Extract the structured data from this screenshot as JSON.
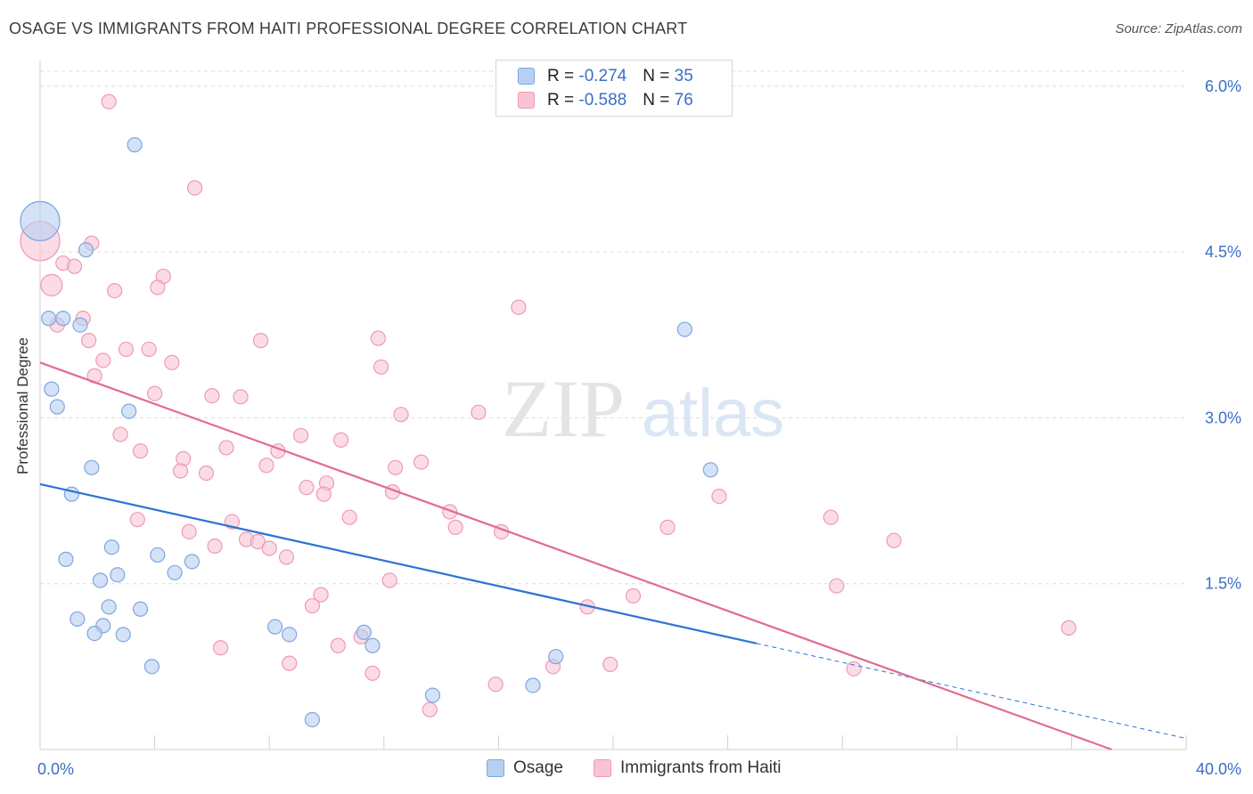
{
  "title": "OSAGE VS IMMIGRANTS FROM HAITI PROFESSIONAL DEGREE CORRELATION CHART",
  "source": "Source: ZipAtlas.com",
  "watermark": {
    "zip": "ZIP",
    "atlas": "atlas"
  },
  "legend": [
    {
      "r_label": "R = ",
      "r_value": "-0.274",
      "n_label": "N = ",
      "n_value": "35"
    },
    {
      "r_label": "R = ",
      "r_value": "-0.588",
      "n_label": "N = ",
      "n_value": "76"
    }
  ],
  "colors": {
    "osage_fill": "#b7cff1",
    "osage_stroke": "#7fa6df",
    "osage_line": "#2e72d2",
    "haiti_fill": "#f8c4d3",
    "haiti_stroke": "#ee9ab4",
    "haiti_line": "#e06b93",
    "tick_label": "#3b6fc4",
    "grid": "#dcdcdc"
  },
  "chart_data": {
    "type": "scatter",
    "title": "OSAGE VS IMMIGRANTS FROM HAITI PROFESSIONAL DEGREE CORRELATION CHART",
    "xlabel": "",
    "ylabel": "Professional Degree",
    "xlim": [
      0,
      40
    ],
    "ylim": [
      0,
      6.2
    ],
    "x_tick_labels": [
      "0.0%",
      "40.0%"
    ],
    "y_ticks": [
      1.5,
      3.0,
      4.5,
      6.0
    ],
    "y_tick_labels": [
      "1.5%",
      "3.0%",
      "4.5%",
      "6.0%"
    ],
    "grid": "horizontal dashed",
    "legend_position": "top-center",
    "series": [
      {
        "name": "Osage",
        "r": -0.274,
        "n": 35,
        "trend": {
          "x0": 0,
          "y0": 2.4,
          "x1": 25,
          "y1": 0.96,
          "dash_to_x": 40,
          "dash_to_y": 0.1
        },
        "points": [
          [
            0.0,
            4.78,
            22
          ],
          [
            3.3,
            5.47,
            8
          ],
          [
            1.6,
            4.52,
            8
          ],
          [
            0.3,
            3.9,
            8
          ],
          [
            0.8,
            3.9,
            8
          ],
          [
            1.4,
            3.84,
            8
          ],
          [
            0.4,
            3.26,
            8
          ],
          [
            0.6,
            3.1,
            8
          ],
          [
            3.1,
            3.06,
            8
          ],
          [
            1.8,
            2.55,
            8
          ],
          [
            1.1,
            2.31,
            8
          ],
          [
            2.5,
            1.83,
            8
          ],
          [
            0.9,
            1.72,
            8
          ],
          [
            4.1,
            1.76,
            8
          ],
          [
            5.3,
            1.7,
            8
          ],
          [
            4.7,
            1.6,
            8
          ],
          [
            2.7,
            1.58,
            8
          ],
          [
            2.1,
            1.53,
            8
          ],
          [
            2.4,
            1.29,
            8
          ],
          [
            3.5,
            1.27,
            8
          ],
          [
            1.3,
            1.18,
            8
          ],
          [
            2.2,
            1.12,
            8
          ],
          [
            1.9,
            1.05,
            8
          ],
          [
            2.9,
            1.04,
            8
          ],
          [
            8.2,
            1.11,
            8
          ],
          [
            8.7,
            1.04,
            8
          ],
          [
            11.3,
            1.06,
            8
          ],
          [
            11.6,
            0.94,
            8
          ],
          [
            3.9,
            0.75,
            8
          ],
          [
            18.0,
            0.84,
            8
          ],
          [
            13.7,
            0.49,
            8
          ],
          [
            17.2,
            0.58,
            8
          ],
          [
            9.5,
            0.27,
            8
          ],
          [
            22.5,
            3.8,
            8
          ],
          [
            23.4,
            2.53,
            8
          ]
        ]
      },
      {
        "name": "Immigrants from Haiti",
        "r": -0.588,
        "n": 76,
        "trend": {
          "x0": 0,
          "y0": 3.5,
          "x1": 37.4,
          "y1": 0.0
        },
        "points": [
          [
            0.0,
            4.6,
            22
          ],
          [
            0.4,
            4.2,
            12
          ],
          [
            2.4,
            5.86,
            8
          ],
          [
            5.4,
            5.08,
            8
          ],
          [
            1.8,
            4.58,
            8
          ],
          [
            0.8,
            4.4,
            8
          ],
          [
            1.2,
            4.37,
            8
          ],
          [
            4.3,
            4.28,
            8
          ],
          [
            4.1,
            4.18,
            8
          ],
          [
            2.6,
            4.15,
            8
          ],
          [
            0.6,
            3.84,
            8
          ],
          [
            1.5,
            3.9,
            8
          ],
          [
            1.7,
            3.7,
            8
          ],
          [
            3.0,
            3.62,
            8
          ],
          [
            3.8,
            3.62,
            8
          ],
          [
            2.2,
            3.52,
            8
          ],
          [
            4.6,
            3.5,
            8
          ],
          [
            1.9,
            3.38,
            8
          ],
          [
            7.7,
            3.7,
            8
          ],
          [
            11.8,
            3.72,
            8
          ],
          [
            11.9,
            3.46,
            8
          ],
          [
            16.7,
            4.0,
            8
          ],
          [
            4.0,
            3.22,
            8
          ],
          [
            6.0,
            3.2,
            8
          ],
          [
            7.0,
            3.19,
            8
          ],
          [
            12.6,
            3.03,
            8
          ],
          [
            15.3,
            3.05,
            8
          ],
          [
            2.8,
            2.85,
            8
          ],
          [
            9.1,
            2.84,
            8
          ],
          [
            10.5,
            2.8,
            8
          ],
          [
            3.5,
            2.7,
            8
          ],
          [
            6.5,
            2.73,
            8
          ],
          [
            8.3,
            2.7,
            8
          ],
          [
            5.0,
            2.63,
            8
          ],
          [
            4.9,
            2.52,
            8
          ],
          [
            5.8,
            2.5,
            8
          ],
          [
            7.9,
            2.57,
            8
          ],
          [
            12.4,
            2.55,
            8
          ],
          [
            13.3,
            2.6,
            8
          ],
          [
            9.3,
            2.37,
            8
          ],
          [
            10.0,
            2.41,
            8
          ],
          [
            9.9,
            2.31,
            8
          ],
          [
            12.3,
            2.33,
            8
          ],
          [
            14.3,
            2.15,
            8
          ],
          [
            3.4,
            2.08,
            8
          ],
          [
            6.7,
            2.06,
            8
          ],
          [
            10.8,
            2.1,
            8
          ],
          [
            5.2,
            1.97,
            8
          ],
          [
            14.5,
            2.01,
            8
          ],
          [
            16.1,
            1.97,
            8
          ],
          [
            21.9,
            2.01,
            8
          ],
          [
            23.7,
            2.29,
            8
          ],
          [
            27.6,
            2.1,
            8
          ],
          [
            29.8,
            1.89,
            8
          ],
          [
            7.2,
            1.9,
            8
          ],
          [
            7.6,
            1.88,
            8
          ],
          [
            6.1,
            1.84,
            8
          ],
          [
            8.0,
            1.82,
            8
          ],
          [
            8.6,
            1.74,
            8
          ],
          [
            12.2,
            1.53,
            8
          ],
          [
            9.8,
            1.4,
            8
          ],
          [
            9.5,
            1.3,
            8
          ],
          [
            20.7,
            1.39,
            8
          ],
          [
            19.1,
            1.29,
            8
          ],
          [
            27.8,
            1.48,
            8
          ],
          [
            6.3,
            0.92,
            8
          ],
          [
            11.2,
            1.02,
            8
          ],
          [
            10.4,
            0.94,
            8
          ],
          [
            8.7,
            0.78,
            8
          ],
          [
            11.6,
            0.69,
            8
          ],
          [
            17.9,
            0.75,
            8
          ],
          [
            19.9,
            0.77,
            8
          ],
          [
            15.9,
            0.59,
            8
          ],
          [
            13.6,
            0.36,
            8
          ],
          [
            28.4,
            0.73,
            8
          ],
          [
            35.9,
            1.1,
            8
          ]
        ]
      }
    ]
  }
}
